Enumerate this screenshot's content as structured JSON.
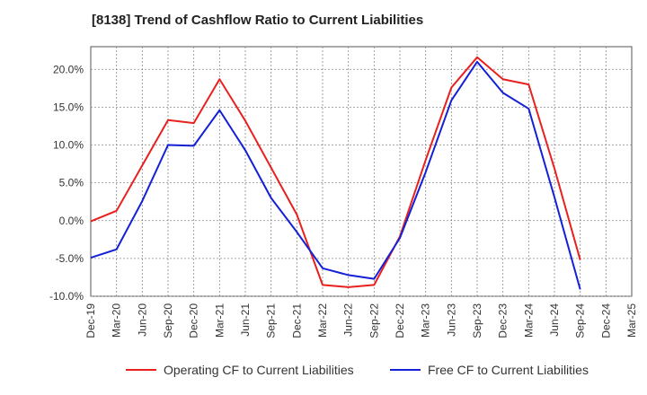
{
  "chart_data": {
    "type": "line",
    "title": "[8138]  Trend of Cashflow Ratio to Current Liabilities",
    "x_tick_labels": [
      "Dec-19",
      "Mar-20",
      "Jun-20",
      "Sep-20",
      "Dec-20",
      "Mar-21",
      "Jun-21",
      "Sep-21",
      "Dec-21",
      "Mar-22",
      "Jun-22",
      "Sep-22",
      "Dec-22",
      "Mar-23",
      "Jun-23",
      "Sep-23",
      "Dec-23",
      "Mar-24",
      "Jun-24",
      "Sep-24",
      "Dec-24",
      "Mar-25"
    ],
    "y_tick_labels": [
      "20.0%",
      "15.0%",
      "10.0%",
      "5.0%",
      "0.0%",
      "-5.0%",
      "-10.0%"
    ],
    "y_ticks": [
      20,
      15,
      10,
      5,
      0,
      -5,
      -10
    ],
    "ylim": [
      -10,
      23
    ],
    "grid": true,
    "legend_position": "bottom",
    "series": [
      {
        "name": "Operating CF to Current Liabilities",
        "color": "#e8201e",
        "x": [
          "Dec-19",
          "Mar-20",
          "Jun-20",
          "Sep-20",
          "Dec-20",
          "Mar-21",
          "Jun-21",
          "Sep-21",
          "Dec-21",
          "Mar-22",
          "Jun-22",
          "Sep-22",
          "Dec-22",
          "Mar-23",
          "Jun-23",
          "Sep-23",
          "Dec-23",
          "Mar-24",
          "Jun-24",
          "Sep-24"
        ],
        "values": [
          -0.1,
          1.3,
          7.3,
          13.3,
          12.9,
          18.7,
          13.2,
          7.0,
          0.8,
          -8.5,
          -8.8,
          -8.5,
          -2.1,
          8.0,
          17.6,
          21.6,
          18.7,
          18.0,
          6.9,
          -5.2
        ]
      },
      {
        "name": "Free CF to Current Liabilities",
        "color": "#1420d6",
        "x": [
          "Dec-19",
          "Mar-20",
          "Jun-20",
          "Sep-20",
          "Dec-20",
          "Mar-21",
          "Jun-21",
          "Sep-21",
          "Dec-21",
          "Mar-22",
          "Jun-22",
          "Sep-22",
          "Dec-22",
          "Mar-23",
          "Jun-23",
          "Sep-23",
          "Dec-23",
          "Mar-24",
          "Jun-24",
          "Sep-24"
        ],
        "values": [
          -4.9,
          -3.8,
          2.6,
          10.0,
          9.9,
          14.6,
          9.3,
          3.0,
          -1.5,
          -6.3,
          -7.2,
          -7.7,
          -2.3,
          6.4,
          15.9,
          21.0,
          16.9,
          14.8,
          3.1,
          -9.1
        ]
      }
    ]
  }
}
